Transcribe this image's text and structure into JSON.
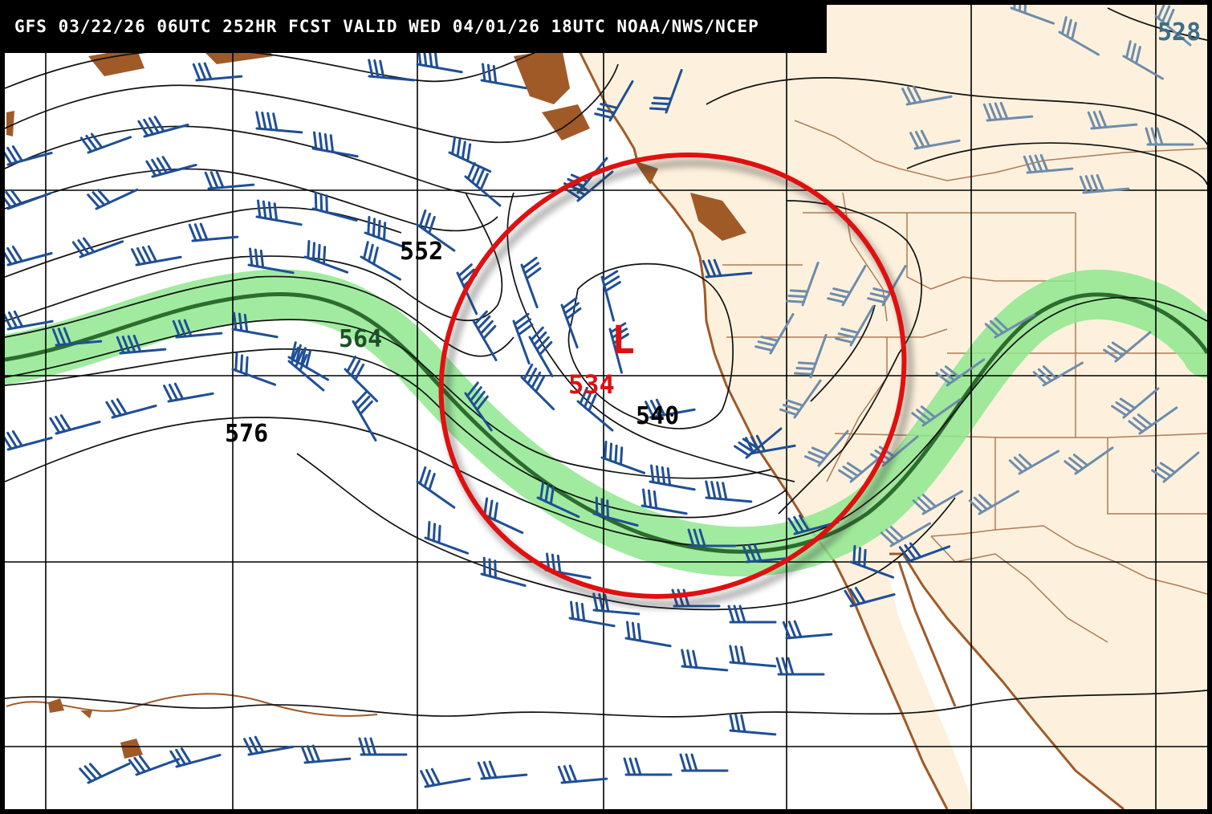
{
  "header": {
    "title": "GFS 03/22/26 06UTC 252HR FCST VALID WED 04/01/26 18UTC NOAA/NWS/NCEP"
  },
  "map": {
    "contour_labels": {
      "c552": "552",
      "c564": "564",
      "c576": "576",
      "c540": "540",
      "c528_partial": "528"
    },
    "low_center": {
      "symbol": "L",
      "value": "534"
    },
    "colors": {
      "ocean": "#ffffff",
      "land": "#fdf1dd",
      "coastline": "#a05a28",
      "grid": "#000000",
      "contour": "#111111",
      "wind_barbs_ocean": "#1f4f96",
      "wind_barbs_land": "#6e8cab",
      "jet_highlight": "#8fe88f",
      "jet_axis": "#2e6b2e",
      "annotation_circle": "#e01010",
      "low_label": "#e01010"
    },
    "icons": [
      "wind-barb-icon",
      "low-pressure-icon"
    ]
  }
}
